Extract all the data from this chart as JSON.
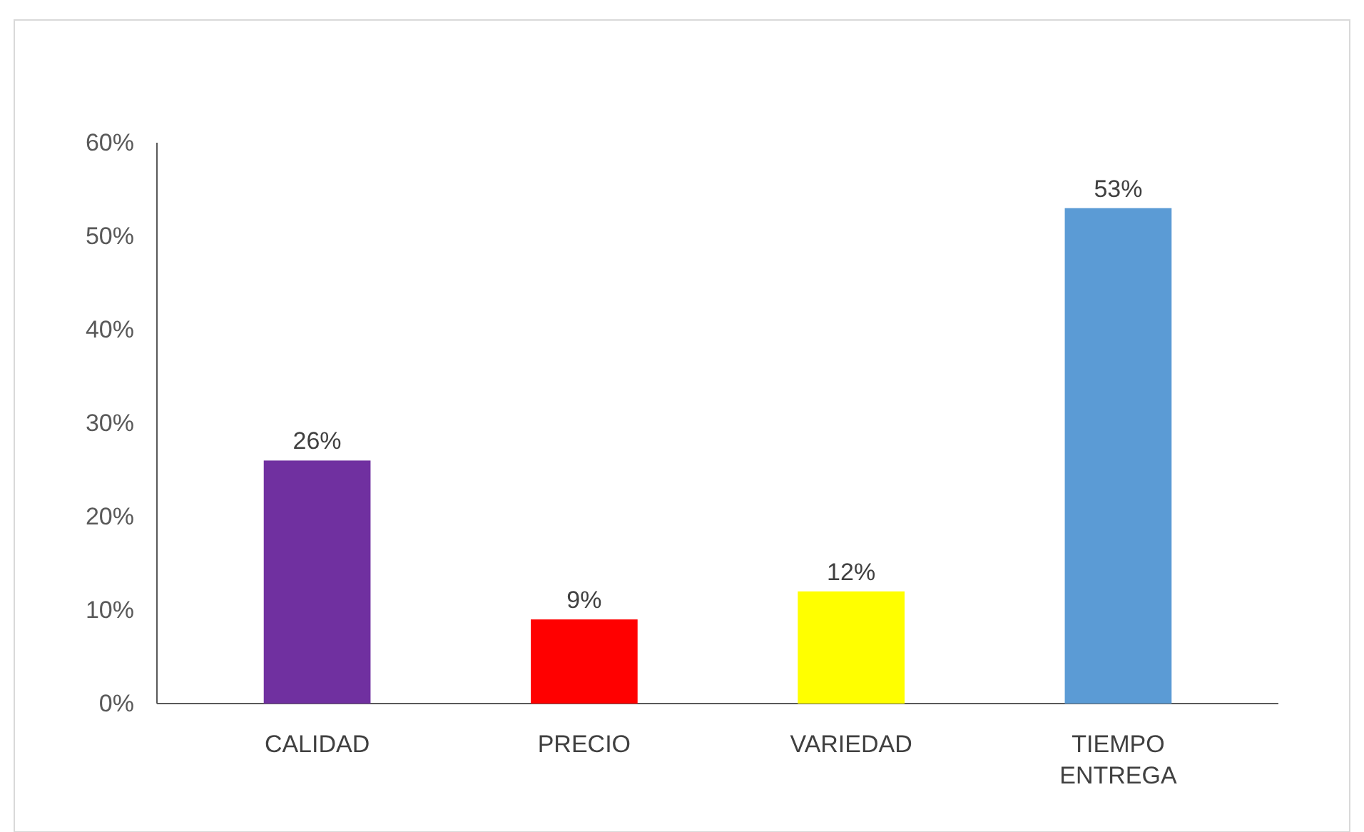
{
  "chart_data": {
    "type": "bar",
    "categories": [
      "CALIDAD",
      "PRECIO",
      "VARIEDAD",
      "TIEMPO ENTREGA"
    ],
    "values": [
      26,
      9,
      12,
      53
    ],
    "colors": [
      "#7030a0",
      "#ff0000",
      "#ffff00",
      "#5b9bd5"
    ],
    "value_labels": [
      "26%",
      "9%",
      "12%",
      "53%"
    ],
    "ylim": [
      0,
      60
    ],
    "yticks": [
      {
        "value": 0,
        "label": "0%"
      },
      {
        "value": 10,
        "label": "10%"
      },
      {
        "value": 20,
        "label": "20%"
      },
      {
        "value": 30,
        "label": "30%"
      },
      {
        "value": 40,
        "label": "40%"
      },
      {
        "value": 50,
        "label": "50%"
      },
      {
        "value": 60,
        "label": "60%"
      }
    ],
    "grid": false
  }
}
